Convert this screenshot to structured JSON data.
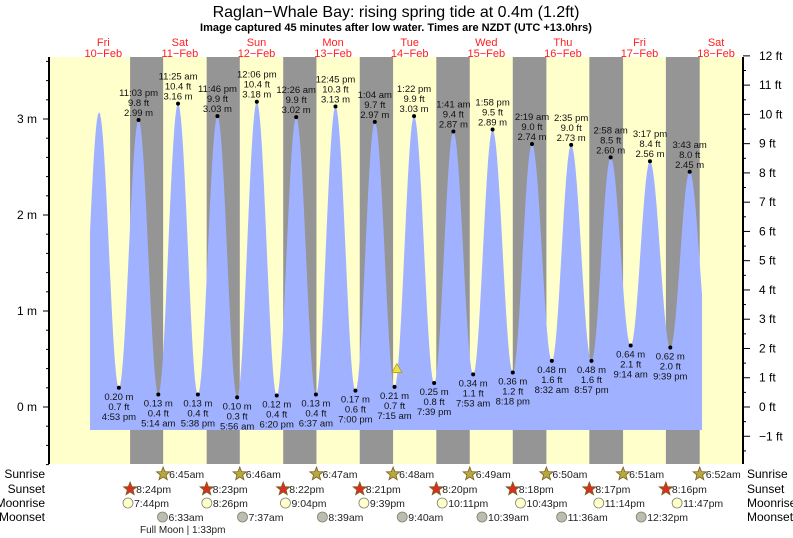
{
  "title": "Raglan−Whale Bay: rising  spring tide at 0.4m (1.2ft)",
  "subtitle": "Image captured 45 minutes after low water. Times are NZDT (UTC +13.0hrs)",
  "colors": {
    "day": "#ffffcc",
    "night": "#959595",
    "water": "#a0b2ff",
    "day_label": "#ff2020",
    "sunrise": "#b8a840",
    "sunset": "#d83020",
    "moonrise": "#ffffcc",
    "moonset": "#bcbcb0",
    "current_marker": "#f0e040"
  },
  "days": [
    {
      "dow": "Fri",
      "date": "10−Feb"
    },
    {
      "dow": "Sat",
      "date": "11−Feb"
    },
    {
      "dow": "Sun",
      "date": "12−Feb"
    },
    {
      "dow": "Mon",
      "date": "13−Feb"
    },
    {
      "dow": "Tue",
      "date": "14−Feb"
    },
    {
      "dow": "Wed",
      "date": "15−Feb"
    },
    {
      "dow": "Thu",
      "date": "16−Feb"
    },
    {
      "dow": "Fri",
      "date": "17−Feb"
    },
    {
      "dow": "Sat",
      "date": "18−Feb"
    }
  ],
  "chart_data": {
    "type": "area",
    "title": "Raglan−Whale Bay: rising  spring tide at 0.4m (1.2ft)",
    "ylim_m": [
      -0.6,
      3.66
    ],
    "left_axis": {
      "ticks": [
        "0 m",
        "1 m",
        "2 m",
        "3 m"
      ],
      "values": [
        0,
        1,
        2,
        3
      ]
    },
    "right_axis": {
      "ticks": [
        "−1 ft",
        "0 ft",
        "1 ft",
        "2 ft",
        "3 ft",
        "4 ft",
        "5 ft",
        "6 ft",
        "7 ft",
        "8 ft",
        "9 ft",
        "10 ft",
        "11 ft",
        "12 ft"
      ],
      "values": [
        -1,
        0,
        1,
        2,
        3,
        4,
        5,
        6,
        7,
        8,
        9,
        10,
        11,
        12
      ]
    },
    "current": {
      "day": 4,
      "time": "8:00 am",
      "height_m": 0.4
    },
    "extremes": [
      {
        "day": 0,
        "time": "10:40 am",
        "m": 3.07,
        "type": "high",
        "labeled": false
      },
      {
        "day": 0,
        "time": "4:53 pm",
        "m": 0.2,
        "ft": "0.7 ft",
        "m_label": "0.20 m",
        "type": "low"
      },
      {
        "day": 0,
        "time": "11:03 pm",
        "m": 2.99,
        "ft": "9.8 ft",
        "m_label": "2.99 m",
        "type": "high"
      },
      {
        "day": 1,
        "time": "5:14 am",
        "m": 0.13,
        "ft": "0.4 ft",
        "m_label": "0.13 m",
        "type": "low"
      },
      {
        "day": 1,
        "time": "11:25 am",
        "m": 3.16,
        "ft": "10.4 ft",
        "m_label": "3.16 m",
        "type": "high"
      },
      {
        "day": 1,
        "time": "5:38 pm",
        "m": 0.13,
        "ft": "0.4 ft",
        "m_label": "0.13 m",
        "type": "low"
      },
      {
        "day": 1,
        "time": "11:46 pm",
        "m": 3.03,
        "ft": "9.9 ft",
        "m_label": "3.03 m",
        "type": "high"
      },
      {
        "day": 2,
        "time": "5:56 am",
        "m": 0.1,
        "ft": "0.3 ft",
        "m_label": "0.10 m",
        "type": "low"
      },
      {
        "day": 2,
        "time": "12:06 pm",
        "m": 3.18,
        "ft": "10.4 ft",
        "m_label": "3.18 m",
        "type": "high"
      },
      {
        "day": 2,
        "time": "6:20 pm",
        "m": 0.12,
        "ft": "0.4 ft",
        "m_label": "0.12 m",
        "type": "low"
      },
      {
        "day": 3,
        "time": "12:26 am",
        "m": 3.02,
        "ft": "9.9 ft",
        "m_label": "3.02 m",
        "type": "high"
      },
      {
        "day": 3,
        "time": "6:37 am",
        "m": 0.13,
        "ft": "0.4 ft",
        "m_label": "0.13 m",
        "type": "low"
      },
      {
        "day": 3,
        "time": "12:45 pm",
        "m": 3.13,
        "ft": "10.3 ft",
        "m_label": "3.13 m",
        "type": "high"
      },
      {
        "day": 3,
        "time": "7:00 pm",
        "m": 0.17,
        "ft": "0.6 ft",
        "m_label": "0.17 m",
        "type": "low"
      },
      {
        "day": 4,
        "time": "1:04 am",
        "m": 2.97,
        "ft": "9.7 ft",
        "m_label": "2.97 m",
        "type": "high"
      },
      {
        "day": 4,
        "time": "7:15 am",
        "m": 0.21,
        "ft": "0.7 ft",
        "m_label": "0.21 m",
        "type": "low"
      },
      {
        "day": 4,
        "time": "1:22 pm",
        "m": 3.03,
        "ft": "9.9 ft",
        "m_label": "3.03 m",
        "type": "high"
      },
      {
        "day": 4,
        "time": "7:39 pm",
        "m": 0.25,
        "ft": "0.8 ft",
        "m_label": "0.25 m",
        "type": "low"
      },
      {
        "day": 5,
        "time": "1:41 am",
        "m": 2.87,
        "ft": "9.4 ft",
        "m_label": "2.87 m",
        "type": "high"
      },
      {
        "day": 5,
        "time": "7:53 am",
        "m": 0.34,
        "ft": "1.1 ft",
        "m_label": "0.34 m",
        "type": "low"
      },
      {
        "day": 5,
        "time": "1:58 pm",
        "m": 2.89,
        "ft": "9.5 ft",
        "m_label": "2.89 m",
        "type": "high"
      },
      {
        "day": 5,
        "time": "8:18 pm",
        "m": 0.36,
        "ft": "1.2 ft",
        "m_label": "0.36 m",
        "type": "low"
      },
      {
        "day": 6,
        "time": "2:19 am",
        "m": 2.74,
        "ft": "9.0 ft",
        "m_label": "2.74 m",
        "type": "high"
      },
      {
        "day": 6,
        "time": "8:32 am",
        "m": 0.48,
        "ft": "1.6 ft",
        "m_label": "0.48 m",
        "type": "low"
      },
      {
        "day": 6,
        "time": "2:35 pm",
        "m": 2.73,
        "ft": "9.0 ft",
        "m_label": "2.73 m",
        "type": "high"
      },
      {
        "day": 6,
        "time": "8:57 pm",
        "m": 0.48,
        "ft": "1.6 ft",
        "m_label": "0.48 m",
        "type": "low"
      },
      {
        "day": 7,
        "time": "2:58 am",
        "m": 2.6,
        "ft": "8.5 ft",
        "m_label": "2.60 m",
        "type": "high"
      },
      {
        "day": 7,
        "time": "9:14 am",
        "m": 0.64,
        "ft": "2.1 ft",
        "m_label": "0.64 m",
        "type": "low"
      },
      {
        "day": 7,
        "time": "3:17 pm",
        "m": 2.56,
        "ft": "8.4 ft",
        "m_label": "2.56 m",
        "type": "high"
      },
      {
        "day": 7,
        "time": "9:39 pm",
        "m": 0.62,
        "ft": "2.0 ft",
        "m_label": "0.62 m",
        "type": "low"
      },
      {
        "day": 8,
        "time": "3:43 am",
        "m": 2.45,
        "ft": "8.0 ft",
        "m_label": "2.45 m",
        "type": "high"
      }
    ]
  },
  "almanac": {
    "labels": {
      "sunrise": "Sunrise",
      "sunset": "Sunset",
      "moonrise": "Moonrise",
      "moonset": "Moonset"
    },
    "sunrise": [
      {
        "day": 1,
        "time": "6:45am"
      },
      {
        "day": 2,
        "time": "6:46am"
      },
      {
        "day": 3,
        "time": "6:47am"
      },
      {
        "day": 4,
        "time": "6:48am"
      },
      {
        "day": 5,
        "time": "6:49am"
      },
      {
        "day": 6,
        "time": "6:50am"
      },
      {
        "day": 7,
        "time": "6:51am"
      },
      {
        "day": 8,
        "time": "6:52am"
      }
    ],
    "sunset": [
      {
        "day": 0,
        "time": "8:24pm"
      },
      {
        "day": 1,
        "time": "8:23pm"
      },
      {
        "day": 2,
        "time": "8:22pm"
      },
      {
        "day": 3,
        "time": "8:21pm"
      },
      {
        "day": 4,
        "time": "8:20pm"
      },
      {
        "day": 5,
        "time": "8:18pm"
      },
      {
        "day": 6,
        "time": "8:17pm"
      },
      {
        "day": 7,
        "time": "8:16pm"
      }
    ],
    "moonrise": [
      {
        "day": 0,
        "time": "7:44pm"
      },
      {
        "day": 1,
        "time": "8:26pm"
      },
      {
        "day": 2,
        "time": "9:04pm"
      },
      {
        "day": 3,
        "time": "9:39pm"
      },
      {
        "day": 4,
        "time": "10:11pm"
      },
      {
        "day": 5,
        "time": "10:43pm"
      },
      {
        "day": 6,
        "time": "11:14pm"
      },
      {
        "day": 7,
        "time": "11:47pm"
      }
    ],
    "moonset": [
      {
        "day": 1,
        "time": "6:33am"
      },
      {
        "day": 2,
        "time": "7:37am"
      },
      {
        "day": 3,
        "time": "8:39am"
      },
      {
        "day": 4,
        "time": "9:40am"
      },
      {
        "day": 5,
        "time": "10:39am"
      },
      {
        "day": 6,
        "time": "11:36am"
      },
      {
        "day": 7,
        "time": "12:32pm"
      }
    ],
    "moon_phase": "Full Moon | 1:33pm"
  }
}
